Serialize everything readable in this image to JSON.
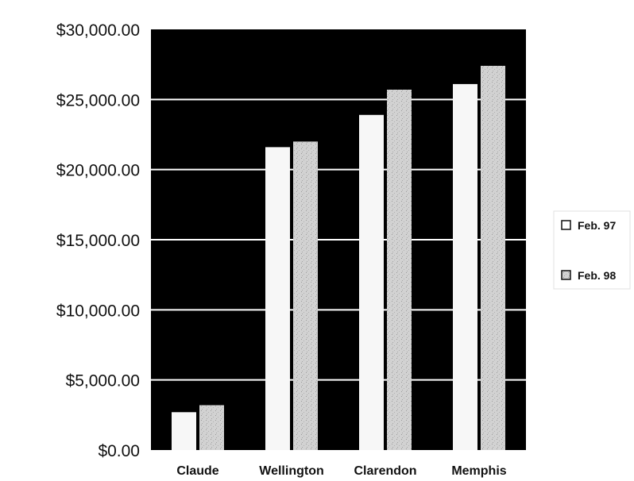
{
  "chart_data": {
    "type": "bar",
    "title": "",
    "xlabel": "",
    "ylabel": "",
    "categories": [
      "Claude",
      "Wellington",
      "Clarendon",
      "Memphis"
    ],
    "series": [
      {
        "name": "Feb. 97",
        "values": [
          2700,
          21600,
          23900,
          26100
        ]
      },
      {
        "name": "Feb. 98",
        "values": [
          3200,
          22000,
          25700,
          27400
        ]
      }
    ],
    "yticks": [
      "$0.00",
      "$5,000.00",
      "$10,000.00",
      "$15,000.00",
      "$20,000.00",
      "$25,000.00",
      "$30,000.00"
    ],
    "ylim": [
      0,
      30000
    ],
    "y_step": 5000,
    "grid": true,
    "legend_position": "right",
    "colors": {
      "plot_background": "#000000",
      "gridline": "#ffffff",
      "series": [
        "#f7f7f7",
        "#d2d2d2"
      ]
    }
  }
}
